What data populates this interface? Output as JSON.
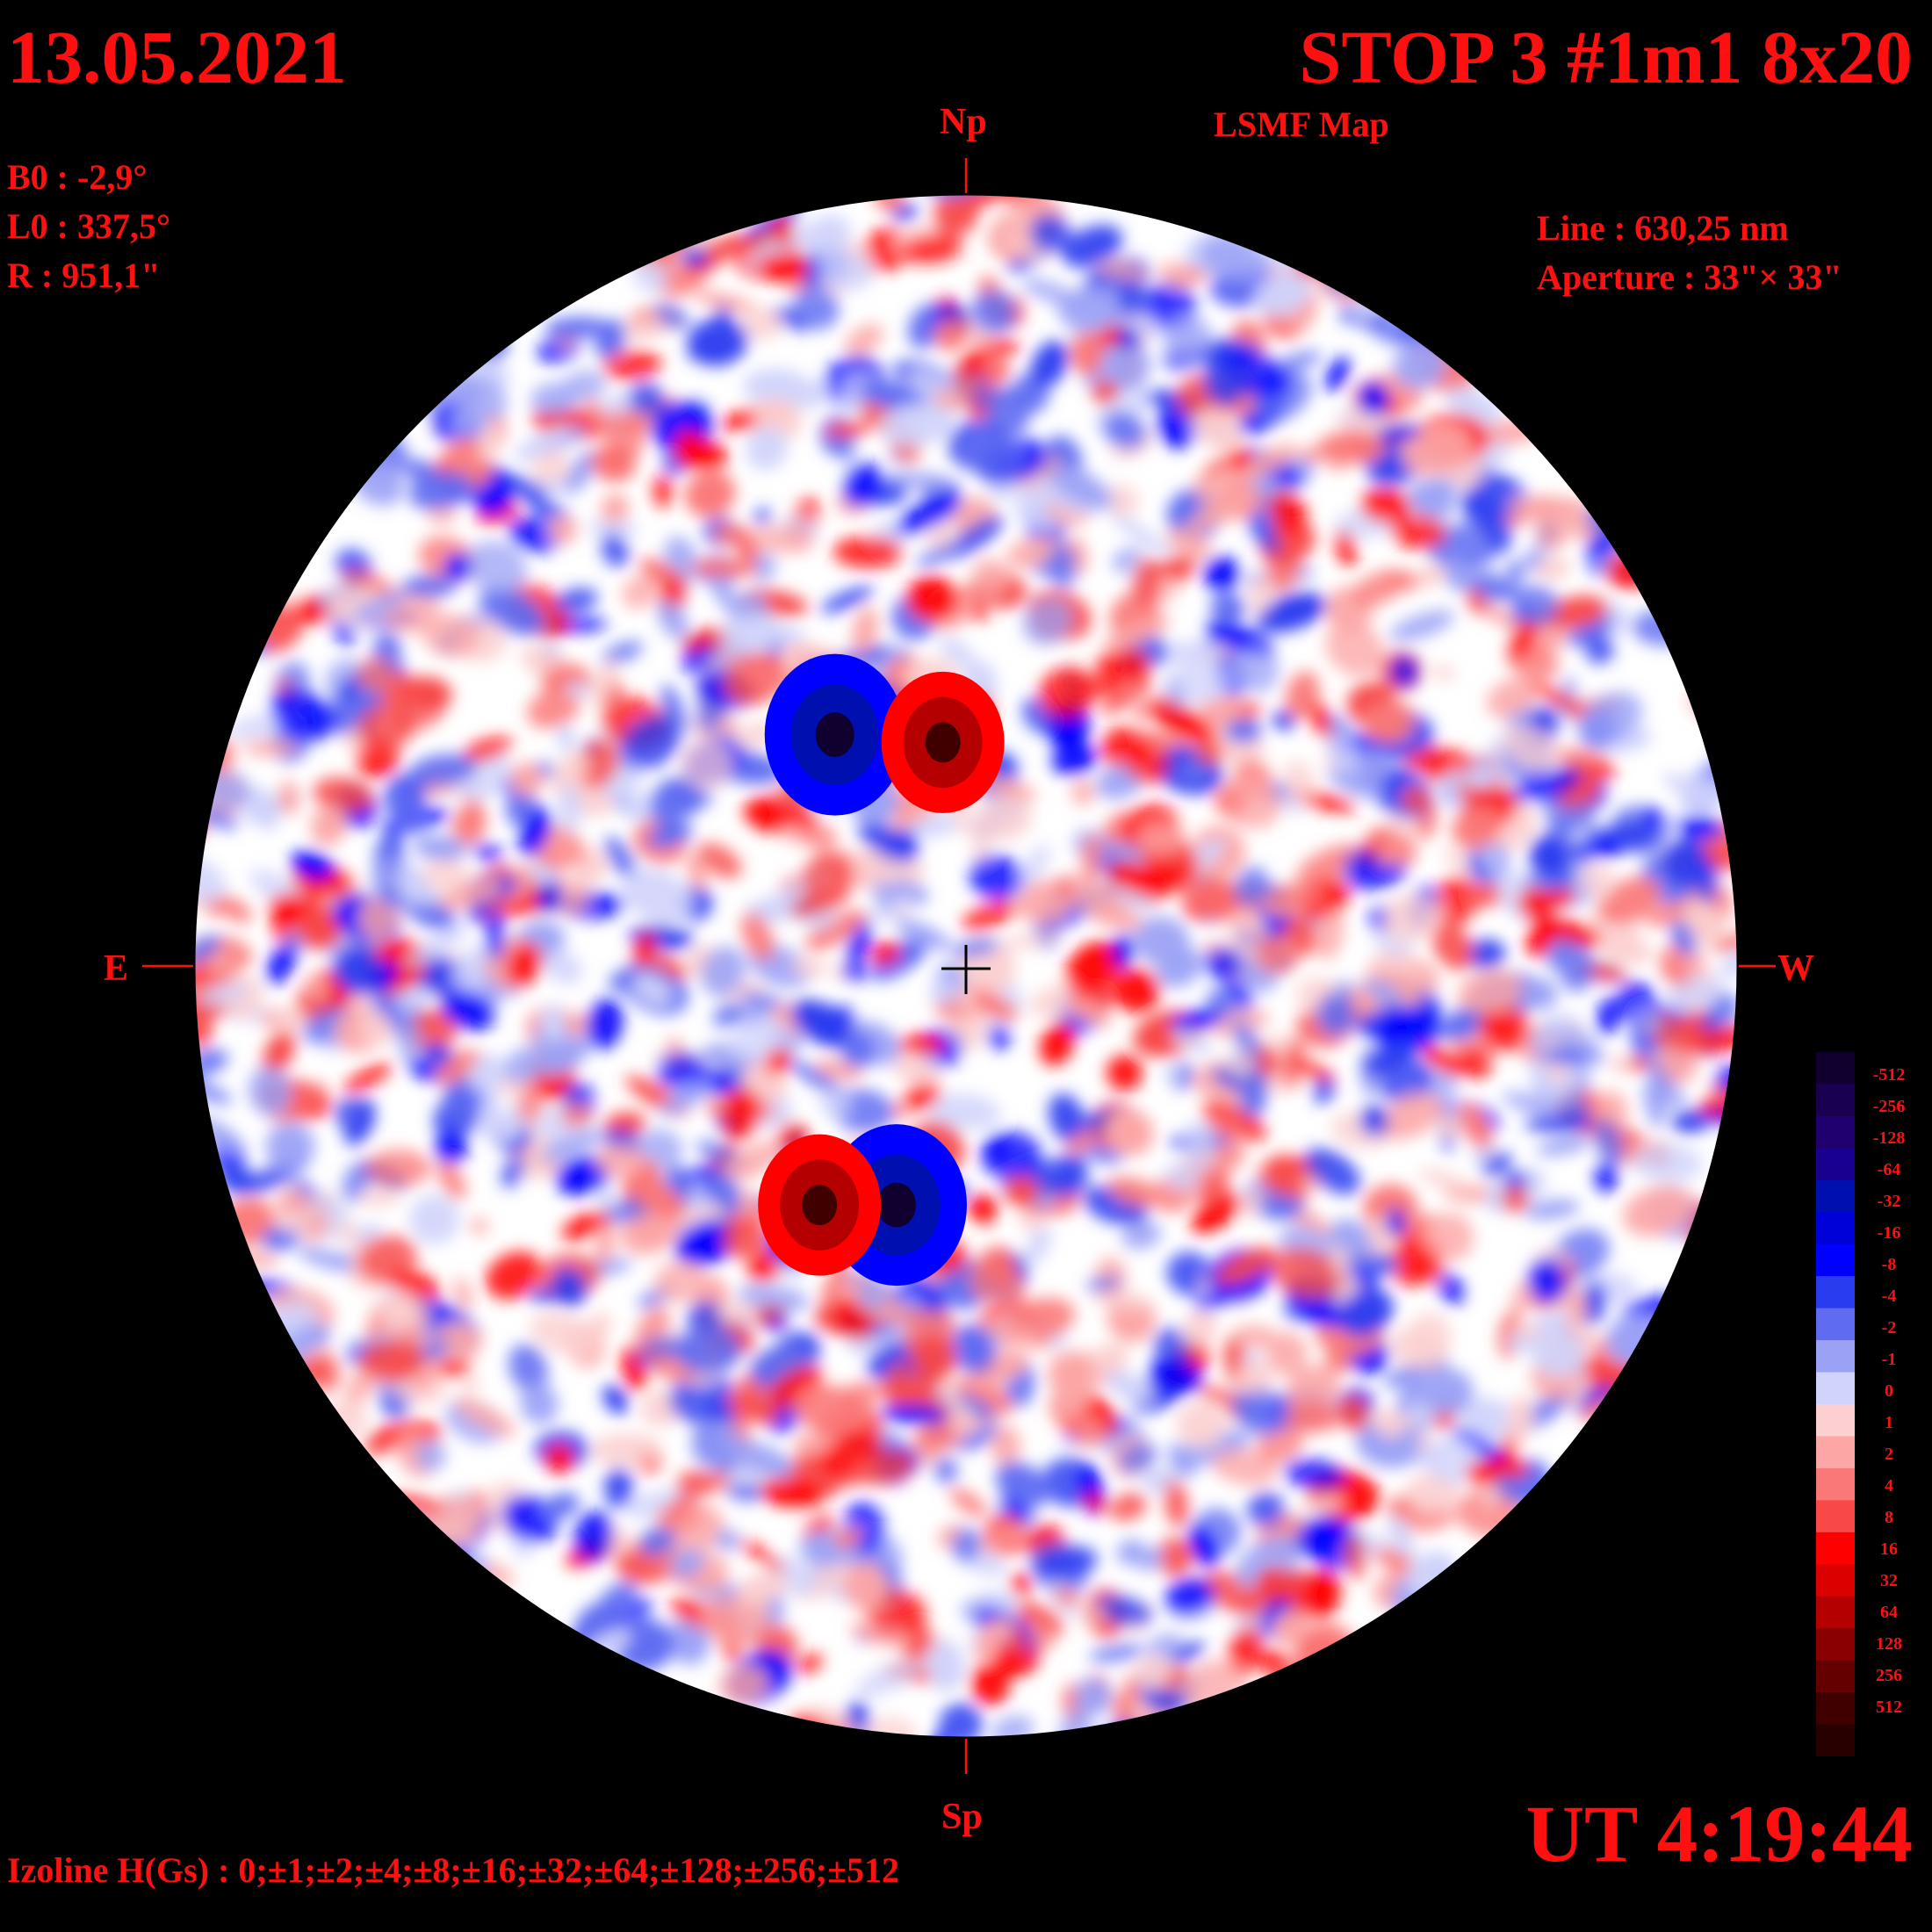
{
  "header": {
    "date": "13.05.2021",
    "title": "STOP 3 #1m1 8x20",
    "subtitle": "LSMF  Map"
  },
  "observation": {
    "b0": "B0 : -2,9°",
    "l0": "L0 : 337,5°",
    "radius": "R  : 951,1\"",
    "line": "Line :  630,25 nm",
    "aperture": "Aperture : 33\"× 33\""
  },
  "directions": {
    "north": "Np",
    "south": "Sp",
    "east": "E",
    "west": "W"
  },
  "time": "UT 4:19:44",
  "izoline": "Izoline H(Gs) : 0;±1;±2;±4;±8;±16;±32;±64;±128;±256;±512",
  "colorbar": {
    "labels": [
      "-512",
      "-256",
      "-128",
      "-64",
      "-32",
      "-16",
      "-8",
      "-4",
      "-2",
      "-1",
      "0",
      "1",
      "2",
      "4",
      "8",
      "16",
      "32",
      "64",
      "128",
      "256",
      "512"
    ],
    "colors": [
      "#100030",
      "#1a0050",
      "#20006e",
      "#1a0090",
      "#0010b0",
      "#0000d8",
      "#0000ff",
      "#2a3cf0",
      "#5f6cf2",
      "#9ba2f6",
      "#d0d3fb",
      "#fcd0d0",
      "#fca6a6",
      "#fb7878",
      "#f84848",
      "#ff0000",
      "#dd0000",
      "#b40000",
      "#8a0000",
      "#640000",
      "#400000",
      "#280000"
    ]
  },
  "magnetogram": {
    "background": "#ffffff",
    "negative_color": "#2a3cf0",
    "positive_color": "#f84848",
    "pairs": [
      {
        "neg": [
          -0.17,
          -0.3
        ],
        "pos": [
          -0.03,
          -0.29
        ]
      },
      {
        "neg": [
          -0.09,
          0.31
        ],
        "pos": [
          -0.19,
          0.31
        ]
      }
    ]
  }
}
